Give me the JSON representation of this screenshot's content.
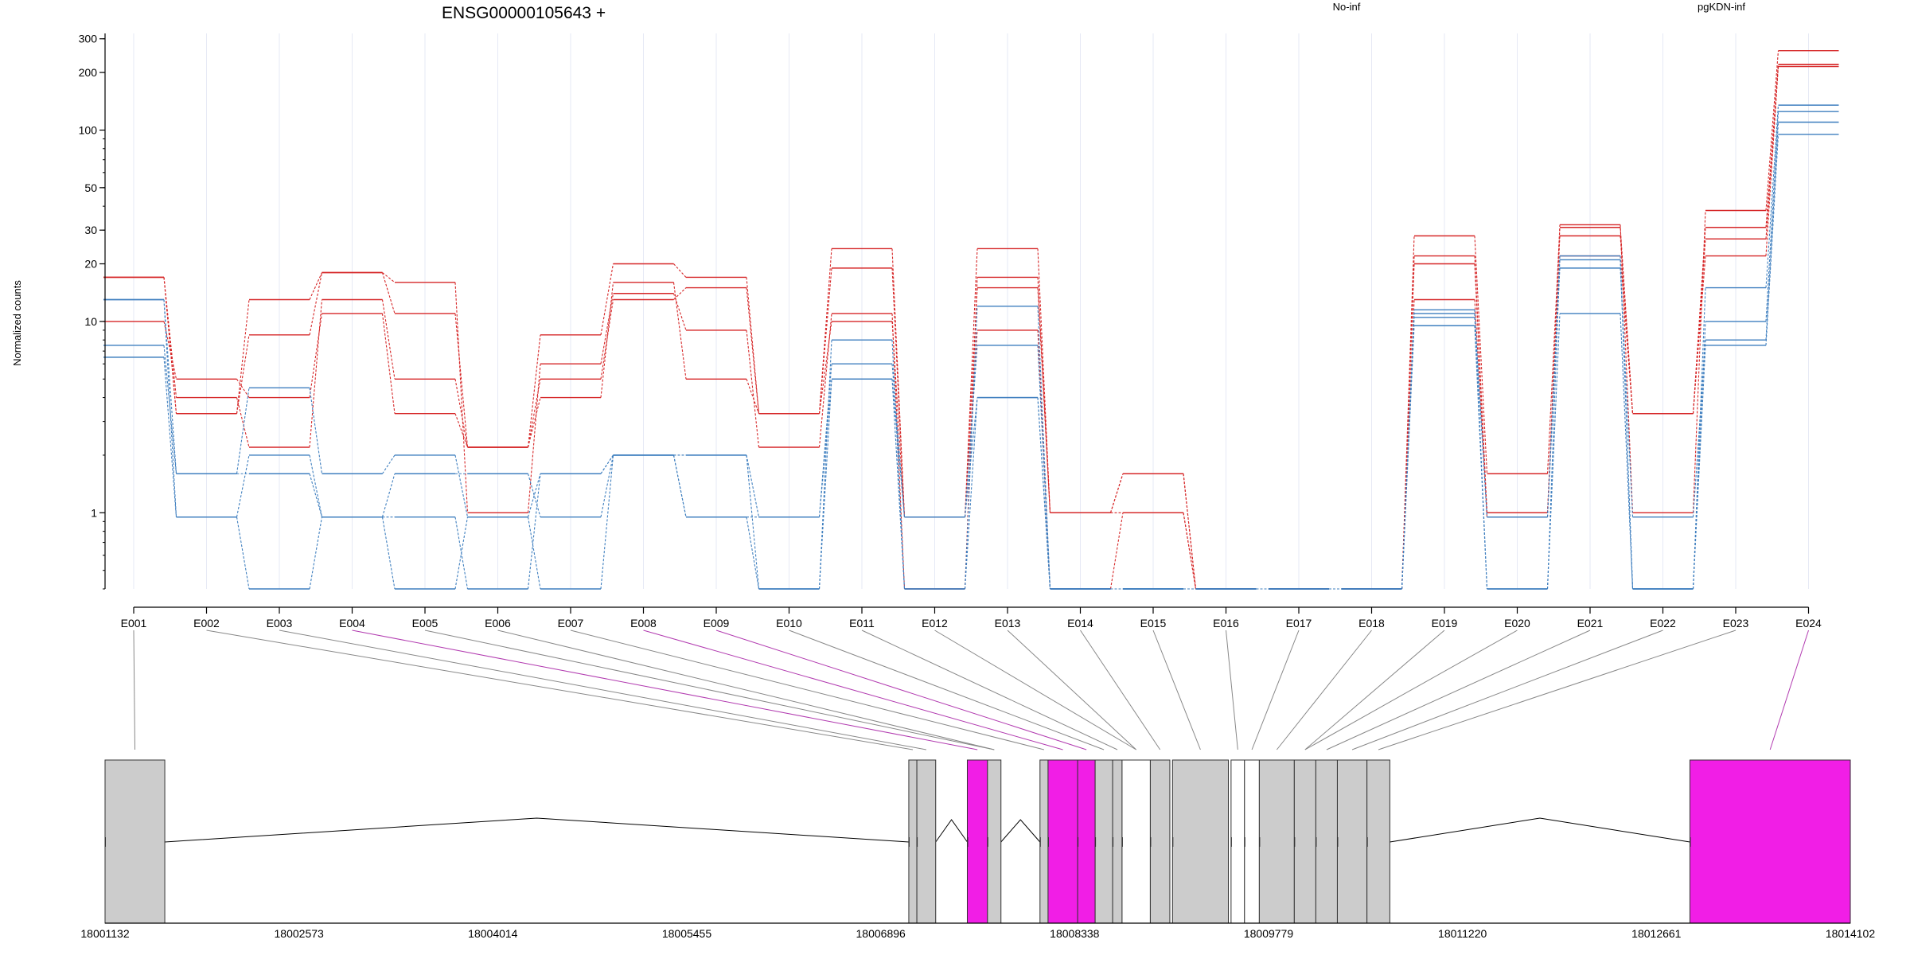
{
  "chart_data": {
    "type": "line",
    "title": "ENSG00000105643 +",
    "ylabel": "Normalized counts",
    "y_scale": "log",
    "ylim": [
      0.4,
      320
    ],
    "y_ticks": [
      {
        "v": 300,
        "label": "300"
      },
      {
        "v": 200,
        "label": "200"
      },
      {
        "v": 100,
        "label": "100"
      },
      {
        "v": 50,
        "label": "50"
      },
      {
        "v": 30,
        "label": "30"
      },
      {
        "v": 20,
        "label": "20"
      },
      {
        "v": 10,
        "label": "10"
      },
      {
        "v": 1,
        "label": "1"
      }
    ],
    "categories": [
      "E001",
      "E002",
      "E003",
      "E004",
      "E005",
      "E006",
      "E007",
      "E008",
      "E009",
      "E010",
      "E011",
      "E012",
      "E013",
      "E014",
      "E015",
      "E016",
      "E017",
      "E018",
      "E019",
      "E020",
      "E021",
      "E022",
      "E023",
      "E024"
    ],
    "legend": [
      {
        "name": "No-inf",
        "color": "#d62728"
      },
      {
        "name": "pgKDN-inf",
        "color": "#3f7fbf"
      }
    ],
    "series": [
      {
        "group": "No-inf",
        "color": "#d62728",
        "values": [
          17,
          3.3,
          13,
          18,
          16,
          1,
          6,
          14,
          9,
          2.2,
          11,
          0.4,
          17,
          1,
          1,
          0.4,
          0.4,
          0.4,
          20,
          0.95,
          32,
          1,
          38,
          260
        ]
      },
      {
        "group": "No-inf",
        "color": "#d62728",
        "values": [
          17,
          3.3,
          8.5,
          18,
          11,
          2.2,
          5,
          13,
          15,
          3.3,
          24,
          0.95,
          24,
          1,
          1.6,
          0.4,
          0.4,
          0.4,
          28,
          1.6,
          31,
          3.3,
          31,
          220
        ]
      },
      {
        "group": "No-inf",
        "color": "#d62728",
        "values": [
          17,
          4,
          2.2,
          13,
          5,
          2.2,
          4,
          16,
          5,
          3.3,
          19,
          0.95,
          15,
          1,
          1.6,
          0.4,
          0.4,
          0.4,
          22,
          1,
          28,
          3.3,
          27,
          220
        ]
      },
      {
        "group": "No-inf",
        "color": "#d62728",
        "values": [
          10,
          5,
          4,
          11,
          3.3,
          2.2,
          8.5,
          20,
          17,
          3.3,
          10,
          0.95,
          9,
          0.4,
          1,
          0.4,
          0.4,
          0.4,
          13,
          1,
          22,
          3.3,
          22,
          215
        ]
      },
      {
        "group": "pgKDN-inf",
        "color": "#3f7fbf",
        "values": [
          13,
          1.6,
          4.5,
          1.6,
          2,
          0.95,
          1.6,
          2,
          2,
          0.4,
          8,
          0.4,
          12,
          0.4,
          0.4,
          0.4,
          0.4,
          0.4,
          11,
          0.95,
          22,
          0.4,
          15,
          135
        ]
      },
      {
        "group": "pgKDN-inf",
        "color": "#3f7fbf",
        "values": [
          13,
          0.95,
          2,
          0.95,
          1.6,
          1.6,
          0.95,
          2,
          0.95,
          0.95,
          6,
          0.95,
          7.5,
          0.4,
          0.4,
          0.4,
          0.4,
          0.4,
          11.5,
          0.4,
          21,
          0.4,
          10,
          125
        ]
      },
      {
        "group": "pgKDN-inf",
        "color": "#3f7fbf",
        "values": [
          7.5,
          1.6,
          1.6,
          0.95,
          0.95,
          0.4,
          1.6,
          2,
          2,
          0.95,
          5,
          0.95,
          4,
          0.4,
          0.4,
          0.4,
          0.4,
          0.4,
          10.5,
          0.95,
          19,
          0.95,
          8,
          110
        ]
      },
      {
        "group": "pgKDN-inf",
        "color": "#3f7fbf",
        "values": [
          6.5,
          0.95,
          0.4,
          0.95,
          0.4,
          0.95,
          0.4,
          2,
          0.95,
          0.4,
          5,
          0.4,
          4,
          0.4,
          0.4,
          0.4,
          0.4,
          0.4,
          9.5,
          0.4,
          11,
          0.4,
          7.5,
          95
        ]
      }
    ],
    "gene_model": {
      "range": [
        18001132,
        18014102
      ],
      "axis_ticks": [
        "18001132",
        "18002573",
        "18004014",
        "18005455",
        "18006896",
        "18008338",
        "18009779",
        "18011220",
        "18012661",
        "18014102"
      ],
      "exons": [
        {
          "start": 18001132,
          "end": 18001576,
          "fill": "#cccccc"
        },
        {
          "start": 18007105,
          "end": 18007165,
          "fill": "#cccccc"
        },
        {
          "start": 18007165,
          "end": 18007305,
          "fill": "#cccccc"
        },
        {
          "start": 18007540,
          "end": 18007690,
          "fill": "#f11ee6"
        },
        {
          "start": 18007690,
          "end": 18007790,
          "fill": "#cccccc"
        },
        {
          "start": 18008080,
          "end": 18008140,
          "fill": "#cccccc"
        },
        {
          "start": 18008140,
          "end": 18008360,
          "fill": "#f11ee6"
        },
        {
          "start": 18008360,
          "end": 18008490,
          "fill": "#f11ee6"
        },
        {
          "start": 18008490,
          "end": 18008620,
          "fill": "#cccccc"
        },
        {
          "start": 18008620,
          "end": 18008690,
          "fill": "#cccccc"
        },
        {
          "start": 18008690,
          "end": 18008900,
          "fill": "#ffffff"
        },
        {
          "start": 18008900,
          "end": 18009045,
          "fill": "#cccccc"
        },
        {
          "start": 18009065,
          "end": 18009480,
          "fill": "#cccccc"
        },
        {
          "start": 18009500,
          "end": 18009600,
          "fill": "#ffffff"
        },
        {
          "start": 18009600,
          "end": 18009710,
          "fill": "#ffffff"
        },
        {
          "start": 18009710,
          "end": 18009970,
          "fill": "#cccccc"
        },
        {
          "start": 18009970,
          "end": 18010130,
          "fill": "#cccccc"
        },
        {
          "start": 18010130,
          "end": 18010290,
          "fill": "#cccccc"
        },
        {
          "start": 18010290,
          "end": 18010510,
          "fill": "#cccccc"
        },
        {
          "start": 18010510,
          "end": 18010680,
          "fill": "#cccccc"
        },
        {
          "start": 18012910,
          "end": 18014102,
          "fill": "#f11ee6"
        }
      ]
    }
  }
}
